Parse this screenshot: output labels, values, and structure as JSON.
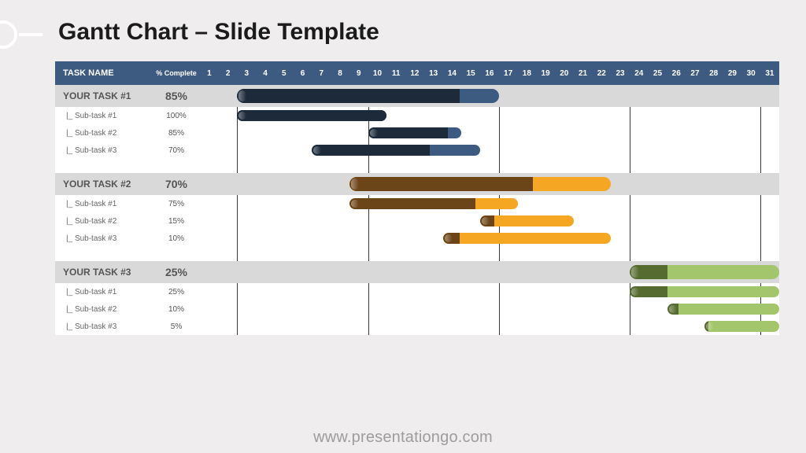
{
  "title": "Gantt Chart – Slide Template",
  "footer": "www.presentationgo.com",
  "chart": {
    "type": "gantt",
    "header": {
      "task_label": "TASK NAME",
      "percent_label": "% Complete",
      "background_color": "#3d5a80",
      "text_color": "#ffffff"
    },
    "days": [
      1,
      2,
      3,
      4,
      5,
      6,
      7,
      8,
      9,
      10,
      11,
      12,
      13,
      14,
      15,
      16,
      17,
      18,
      19,
      20,
      21,
      22,
      23,
      24,
      25,
      26,
      27,
      28,
      29,
      30,
      31
    ],
    "vertical_grid_after_days": [
      2,
      9,
      16,
      23,
      30
    ],
    "main_task_row_bg": "#d9d9d9",
    "background_color": "#ffffff",
    "tasks": [
      {
        "name": "YOUR TASK #1",
        "percent": "85%",
        "start": 3,
        "end": 16,
        "progress": 0.85,
        "bar_bg": "#3d5a80",
        "fill": "#1c2a3a",
        "subtasks": [
          {
            "name": "|_ Sub-task #1",
            "percent": "100%",
            "start": 3,
            "end": 10,
            "progress": 1.0,
            "bar_bg": "#3d5a80",
            "fill": "#1c2a3a"
          },
          {
            "name": "|_ Sub-task #2",
            "percent": "85%",
            "start": 10,
            "end": 14,
            "progress": 0.85,
            "bar_bg": "#3d5a80",
            "fill": "#1c2a3a"
          },
          {
            "name": "|_ Sub-task #3",
            "percent": "70%",
            "start": 7,
            "end": 15,
            "progress": 0.7,
            "bar_bg": "#3d5a80",
            "fill": "#1c2a3a"
          }
        ]
      },
      {
        "name": "YOUR TASK #2",
        "percent": "70%",
        "start": 9,
        "end": 22,
        "progress": 0.7,
        "bar_bg": "#f5a623",
        "fill": "#6b4417",
        "subtasks": [
          {
            "name": "|_ Sub-task #1",
            "percent": "75%",
            "start": 9,
            "end": 17,
            "progress": 0.75,
            "bar_bg": "#f5a623",
            "fill": "#6b4417"
          },
          {
            "name": "|_ Sub-task #2",
            "percent": "15%",
            "start": 16,
            "end": 20,
            "progress": 0.15,
            "bar_bg": "#f5a623",
            "fill": "#6b4417"
          },
          {
            "name": "|_ Sub-task #3",
            "percent": "10%",
            "start": 14,
            "end": 22,
            "progress": 0.1,
            "bar_bg": "#f5a623",
            "fill": "#6b4417"
          }
        ]
      },
      {
        "name": "YOUR TASK #3",
        "percent": "25%",
        "start": 24,
        "end": 31,
        "progress": 0.25,
        "bar_bg": "#a3c66c",
        "fill": "#556b2f",
        "subtasks": [
          {
            "name": "|_ Sub-task #1",
            "percent": "25%",
            "start": 24,
            "end": 31,
            "progress": 0.25,
            "bar_bg": "#a3c66c",
            "fill": "#556b2f"
          },
          {
            "name": "|_ Sub-task #2",
            "percent": "10%",
            "start": 26,
            "end": 31,
            "progress": 0.1,
            "bar_bg": "#a3c66c",
            "fill": "#556b2f"
          },
          {
            "name": "|_ Sub-task #3",
            "percent": "5%",
            "start": 28,
            "end": 31,
            "progress": 0.05,
            "bar_bg": "#a3c66c",
            "fill": "#556b2f"
          }
        ]
      }
    ]
  }
}
